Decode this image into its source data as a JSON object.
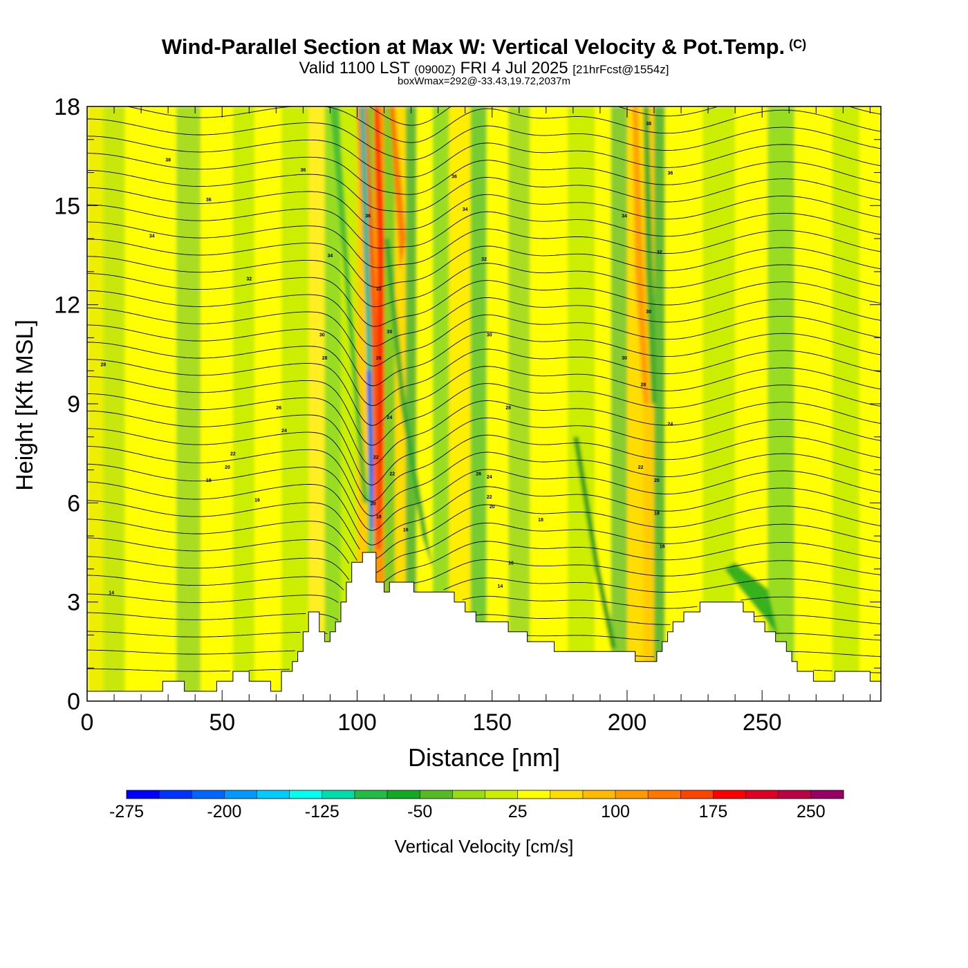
{
  "title": {
    "main": "Wind-Parallel Section at Max W: Vertical Velocity & Pot.Temp.",
    "copyright": "(C)",
    "valid_prefix": "Valid 1100 LST",
    "valid_utc": "(0900Z)",
    "valid_date": "FRI 4 Jul 2025",
    "forecast": "[21hrFcst@1554z]",
    "boxwmax": "boxWmax=292@-33.43,19.72,2037m"
  },
  "chart_data": {
    "type": "heatmap",
    "xlabel": "Distance [nm]",
    "ylabel": "Height [Kft MSL]",
    "xlim": [
      0,
      294
    ],
    "ylim": [
      0,
      18
    ],
    "x_ticks": [
      0,
      50,
      100,
      150,
      200,
      250
    ],
    "y_ticks": [
      0,
      3,
      6,
      9,
      12,
      15,
      18
    ],
    "colorbar": {
      "label": "Vertical Velocity [cm/s]",
      "ticks": [
        "-275",
        "-200",
        "-125",
        "-50",
        "25",
        "100",
        "175",
        "250"
      ],
      "levels": [
        -275,
        -250,
        -225,
        -200,
        -175,
        -150,
        -125,
        -100,
        -75,
        -50,
        -25,
        0,
        25,
        50,
        75,
        100,
        125,
        150,
        175,
        200,
        225,
        250,
        275
      ],
      "colors": [
        "#0000ff",
        "#0033ff",
        "#0066ff",
        "#0099ff",
        "#00ccff",
        "#00ffee",
        "#00ddaa",
        "#22bb44",
        "#11aa22",
        "#55bb22",
        "#99dd11",
        "#ccee00",
        "#ffff00",
        "#ffdd00",
        "#ffbb00",
        "#ff9900",
        "#ff7700",
        "#ff4400",
        "#ff0000",
        "#dd0022",
        "#bb0044",
        "#990066"
      ]
    },
    "terrain": [
      [
        0,
        0.3
      ],
      [
        28,
        0.3
      ],
      [
        28,
        0.6
      ],
      [
        36,
        0.6
      ],
      [
        36,
        0.3
      ],
      [
        48,
        0.3
      ],
      [
        48,
        0.6
      ],
      [
        54,
        0.6
      ],
      [
        54,
        0.9
      ],
      [
        60,
        0.9
      ],
      [
        60,
        0.6
      ],
      [
        68,
        0.6
      ],
      [
        68,
        0.3
      ],
      [
        72,
        0.3
      ],
      [
        72,
        0.9
      ],
      [
        76,
        0.9
      ],
      [
        76,
        1.2
      ],
      [
        78,
        1.2
      ],
      [
        78,
        1.5
      ],
      [
        80,
        1.5
      ],
      [
        80,
        2.1
      ],
      [
        82,
        2.1
      ],
      [
        82,
        2.7
      ],
      [
        86,
        2.7
      ],
      [
        86,
        2.1
      ],
      [
        88,
        2.1
      ],
      [
        88,
        1.8
      ],
      [
        90,
        1.8
      ],
      [
        90,
        2.1
      ],
      [
        92,
        2.1
      ],
      [
        92,
        2.4
      ],
      [
        94,
        2.4
      ],
      [
        94,
        3.0
      ],
      [
        96,
        3.0
      ],
      [
        96,
        3.6
      ],
      [
        98,
        3.6
      ],
      [
        98,
        4.2
      ],
      [
        102,
        4.2
      ],
      [
        102,
        4.5
      ],
      [
        107,
        4.5
      ],
      [
        107,
        3.6
      ],
      [
        110,
        3.6
      ],
      [
        110,
        3.3
      ],
      [
        112,
        3.3
      ],
      [
        112,
        3.6
      ],
      [
        121,
        3.6
      ],
      [
        121,
        3.3
      ],
      [
        136,
        3.3
      ],
      [
        136,
        3.0
      ],
      [
        140,
        3.0
      ],
      [
        140,
        2.7
      ],
      [
        144,
        2.7
      ],
      [
        144,
        2.4
      ],
      [
        156,
        2.4
      ],
      [
        156,
        2.1
      ],
      [
        163,
        2.1
      ],
      [
        163,
        1.8
      ],
      [
        173,
        1.8
      ],
      [
        173,
        1.5
      ],
      [
        203,
        1.5
      ],
      [
        203,
        1.2
      ],
      [
        211,
        1.2
      ],
      [
        211,
        1.5
      ],
      [
        213,
        1.5
      ],
      [
        213,
        1.8
      ],
      [
        215,
        1.8
      ],
      [
        215,
        2.1
      ],
      [
        217,
        2.1
      ],
      [
        217,
        2.4
      ],
      [
        221,
        2.4
      ],
      [
        221,
        2.7
      ],
      [
        227,
        2.7
      ],
      [
        227,
        3.0
      ],
      [
        243,
        3.0
      ],
      [
        243,
        2.7
      ],
      [
        247,
        2.7
      ],
      [
        247,
        2.4
      ],
      [
        251,
        2.4
      ],
      [
        251,
        2.1
      ],
      [
        255,
        2.1
      ],
      [
        255,
        1.8
      ],
      [
        259,
        1.8
      ],
      [
        259,
        1.5
      ],
      [
        261,
        1.5
      ],
      [
        261,
        1.2
      ],
      [
        263,
        1.2
      ],
      [
        263,
        0.9
      ],
      [
        269,
        0.9
      ],
      [
        269,
        0.6
      ],
      [
        277,
        0.6
      ],
      [
        277,
        0.9
      ],
      [
        290,
        0.9
      ],
      [
        290,
        0.6
      ],
      [
        294,
        0.6
      ]
    ],
    "contour_labels": [
      {
        "x": 30,
        "y": 16.4,
        "text": "38"
      },
      {
        "x": 45,
        "y": 15.2,
        "text": "36"
      },
      {
        "x": 24,
        "y": 14.1,
        "text": "34"
      },
      {
        "x": 60,
        "y": 12.8,
        "text": "32"
      },
      {
        "x": 6,
        "y": 10.2,
        "text": "28"
      },
      {
        "x": 71,
        "y": 8.9,
        "text": "26"
      },
      {
        "x": 73,
        "y": 8.2,
        "text": "24"
      },
      {
        "x": 54,
        "y": 7.5,
        "text": "22"
      },
      {
        "x": 52,
        "y": 7.1,
        "text": "20"
      },
      {
        "x": 45,
        "y": 6.7,
        "text": "18"
      },
      {
        "x": 63,
        "y": 6.1,
        "text": "16"
      },
      {
        "x": 9,
        "y": 3.3,
        "text": "14"
      },
      {
        "x": 80,
        "y": 16.1,
        "text": "36"
      },
      {
        "x": 90,
        "y": 13.5,
        "text": "34"
      },
      {
        "x": 104,
        "y": 14.7,
        "text": "36"
      },
      {
        "x": 108,
        "y": 12.5,
        "text": "32"
      },
      {
        "x": 112,
        "y": 11.2,
        "text": "30"
      },
      {
        "x": 87,
        "y": 11.1,
        "text": "30"
      },
      {
        "x": 88,
        "y": 10.4,
        "text": "28"
      },
      {
        "x": 108,
        "y": 10.4,
        "text": "26"
      },
      {
        "x": 112,
        "y": 8.6,
        "text": "24"
      },
      {
        "x": 107,
        "y": 7.4,
        "text": "22"
      },
      {
        "x": 113,
        "y": 6.9,
        "text": "22"
      },
      {
        "x": 106,
        "y": 6.0,
        "text": "20"
      },
      {
        "x": 108,
        "y": 5.6,
        "text": "18"
      },
      {
        "x": 118,
        "y": 5.2,
        "text": "16"
      },
      {
        "x": 136,
        "y": 15.9,
        "text": "36"
      },
      {
        "x": 140,
        "y": 14.9,
        "text": "34"
      },
      {
        "x": 147,
        "y": 13.4,
        "text": "32"
      },
      {
        "x": 149,
        "y": 11.1,
        "text": "30"
      },
      {
        "x": 156,
        "y": 8.9,
        "text": "28"
      },
      {
        "x": 145,
        "y": 6.9,
        "text": "26"
      },
      {
        "x": 149,
        "y": 6.8,
        "text": "24"
      },
      {
        "x": 149,
        "y": 6.2,
        "text": "22"
      },
      {
        "x": 150,
        "y": 5.9,
        "text": "20"
      },
      {
        "x": 168,
        "y": 5.5,
        "text": "18"
      },
      {
        "x": 157,
        "y": 4.2,
        "text": "16"
      },
      {
        "x": 153,
        "y": 3.5,
        "text": "14"
      },
      {
        "x": 208,
        "y": 17.5,
        "text": "38"
      },
      {
        "x": 216,
        "y": 16.0,
        "text": "36"
      },
      {
        "x": 199,
        "y": 14.7,
        "text": "34"
      },
      {
        "x": 212,
        "y": 13.6,
        "text": "32"
      },
      {
        "x": 208,
        "y": 11.8,
        "text": "30"
      },
      {
        "x": 199,
        "y": 10.4,
        "text": "30"
      },
      {
        "x": 206,
        "y": 9.6,
        "text": "28"
      },
      {
        "x": 216,
        "y": 8.4,
        "text": "24"
      },
      {
        "x": 205,
        "y": 7.1,
        "text": "22"
      },
      {
        "x": 211,
        "y": 6.7,
        "text": "20"
      },
      {
        "x": 211,
        "y": 5.7,
        "text": "18"
      },
      {
        "x": 213,
        "y": 4.7,
        "text": "16"
      }
    ]
  }
}
